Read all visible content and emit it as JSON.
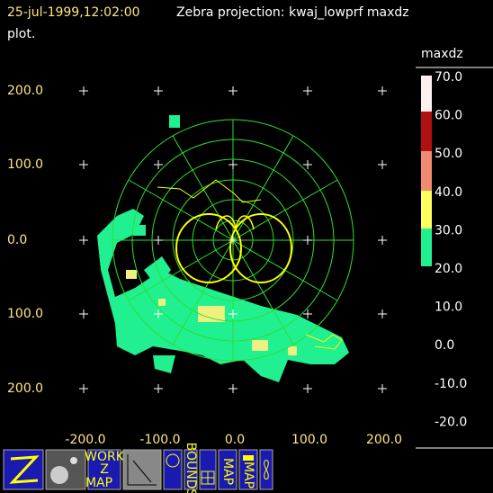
{
  "header": {
    "time": "25-jul-1999,12:02:00",
    "title": "Zebra projection: kwaj_lowprf maxdz",
    "subtitle": "plot."
  },
  "plot": {
    "x_labels": [
      "-200.0",
      "-100.0",
      "0.0",
      "100.0",
      "200.0"
    ],
    "y_labels": [
      "200.0",
      "100.0",
      "0.0",
      "100.0",
      "200.0"
    ]
  },
  "colorbar": {
    "field": "maxdz",
    "labels": [
      "70.0",
      "60.0",
      "50.0",
      "40.0",
      "30.0",
      "20.0",
      "10.0",
      "0.0",
      "-10.0",
      "-20.0"
    ]
  },
  "toolbar": {
    "work_label": "WORK",
    "z_label": "Z",
    "map_label": "MAP",
    "bounds_label": "BOUNDS",
    "map_label_2": "MAP",
    "map_label_3": "MAP"
  }
}
